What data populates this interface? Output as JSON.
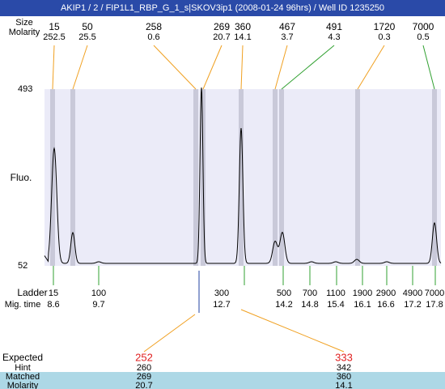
{
  "header": {
    "title": "AKIP1 / 2 / FIP1L1_RBP_G_1_s|SKOV3ip1 (2008-01-24 96hrs) / Well ID 1235250"
  },
  "peak_table": {
    "row_labels": [
      "Size",
      "Molarity"
    ],
    "sizes": [
      15,
      50,
      258,
      269,
      360,
      467,
      491,
      1720,
      7000
    ],
    "molarities": [
      252.5,
      25.5,
      0.6,
      20.7,
      14.1,
      3.7,
      4.3,
      0.3,
      0.5
    ]
  },
  "plot": {
    "y_label": "Fluo.",
    "y_top": 493,
    "y_bottom": 52
  },
  "ladder": {
    "row_labels": [
      "Ladder",
      "Mig. time"
    ],
    "sizes": [
      15,
      100,
      300,
      500,
      700,
      1100,
      1900,
      2900,
      4900,
      7000
    ],
    "mig_times": [
      8.6,
      9.7,
      12.7,
      14.2,
      14.8,
      15.4,
      16.1,
      16.6,
      17.2,
      17.8
    ]
  },
  "expected": {
    "row_labels": [
      "Expected",
      "Hint",
      "Matched",
      "Molarity"
    ],
    "expected": [
      252,
      333
    ],
    "hint": [
      260,
      342
    ],
    "matched": [
      269,
      360
    ],
    "molarity": [
      20.7,
      14.1
    ]
  }
}
